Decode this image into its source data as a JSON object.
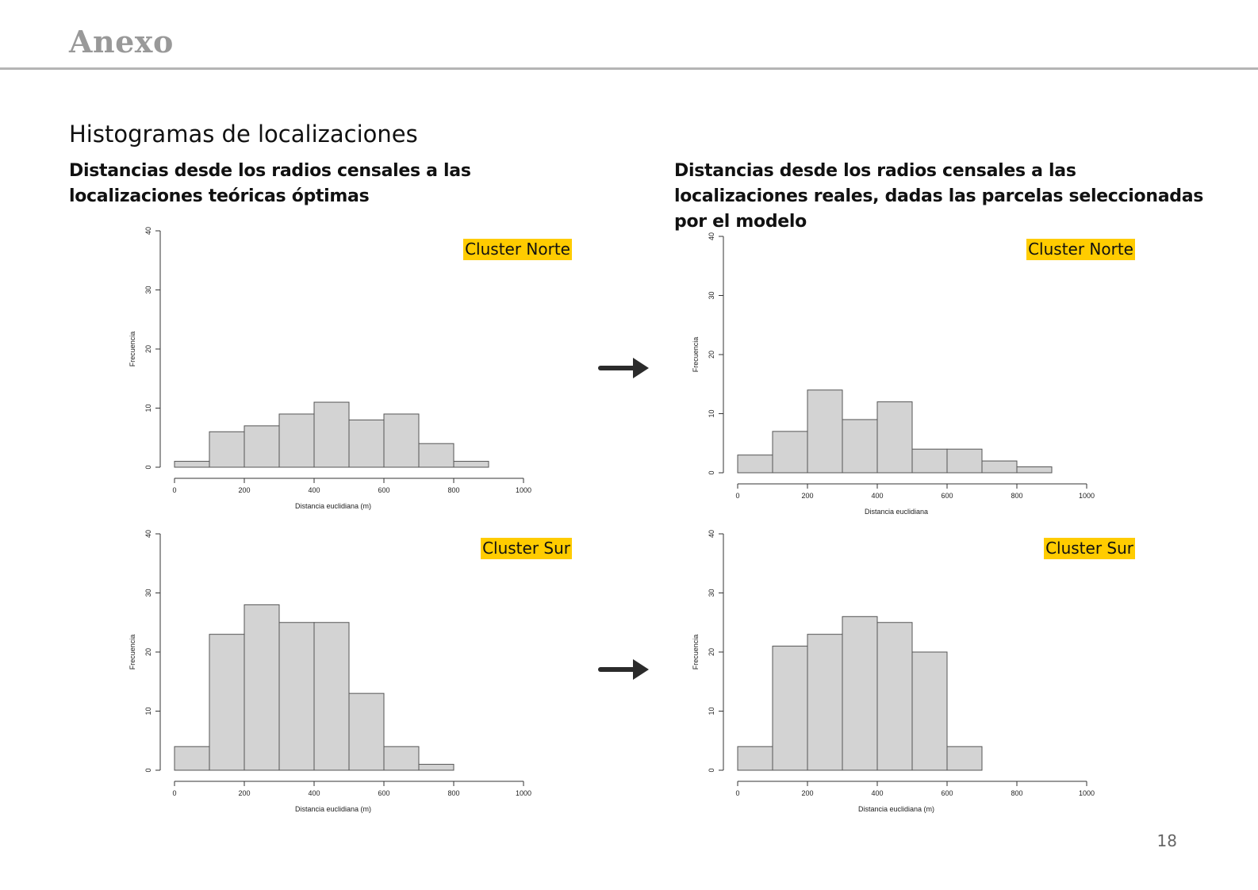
{
  "slide": {
    "title": "Anexo",
    "section_heading": "Histogramas de localizaciones",
    "left_heading": "Distancias desde los radios censales a las localizaciones teóricas óptimas",
    "right_heading": "Distancias desde los radios censales a las localizaciones reales, dadas las parcelas seleccionadas por el modelo",
    "page_number": "18",
    "highlight_color": "#ffcc00",
    "arrow_icon": "right-arrow-icon"
  },
  "chart_data": [
    {
      "id": "norte-teorico",
      "type": "bar",
      "tag": "Cluster Norte",
      "bin_edges": [
        0,
        100,
        200,
        300,
        400,
        500,
        600,
        700,
        800,
        900
      ],
      "values": [
        1,
        6,
        7,
        9,
        11,
        8,
        9,
        4,
        1
      ],
      "xlim": [
        0,
        1000
      ],
      "ylim": [
        0,
        40
      ],
      "xticks": [
        0,
        200,
        400,
        600,
        800,
        1000
      ],
      "yticks": [
        0,
        10,
        20,
        30,
        40
      ],
      "xlabel": "Distancia euclidiana (m)",
      "ylabel": "Frecuencia",
      "bar_color": "#d3d3d3",
      "grid": false
    },
    {
      "id": "norte-real",
      "type": "bar",
      "tag": "Cluster Norte",
      "bin_edges": [
        0,
        100,
        200,
        300,
        400,
        500,
        600,
        700,
        800,
        900
      ],
      "values": [
        3,
        7,
        14,
        9,
        12,
        4,
        4,
        2,
        1
      ],
      "xlim": [
        0,
        1000
      ],
      "ylim": [
        0,
        40
      ],
      "xticks": [
        0,
        200,
        400,
        600,
        800,
        1000
      ],
      "yticks": [
        0,
        10,
        20,
        30,
        40
      ],
      "xlabel": "Distancia euclidiana",
      "ylabel": "Frecuencia",
      "bar_color": "#d3d3d3",
      "grid": false
    },
    {
      "id": "sur-teorico",
      "type": "bar",
      "tag": "Cluster Sur",
      "bin_edges": [
        0,
        100,
        200,
        300,
        400,
        500,
        600,
        700,
        800
      ],
      "values": [
        4,
        23,
        28,
        25,
        25,
        13,
        4,
        1
      ],
      "xlim": [
        0,
        1000
      ],
      "ylim": [
        0,
        40
      ],
      "xticks": [
        0,
        200,
        400,
        600,
        800,
        1000
      ],
      "yticks": [
        0,
        10,
        20,
        30,
        40
      ],
      "xlabel": "Distancia euclidiana (m)",
      "ylabel": "Frecuencia",
      "bar_color": "#d3d3d3",
      "grid": false
    },
    {
      "id": "sur-real",
      "type": "bar",
      "tag": "Cluster Sur",
      "bin_edges": [
        0,
        100,
        200,
        300,
        400,
        500,
        600,
        700
      ],
      "values": [
        4,
        21,
        23,
        26,
        25,
        20,
        4
      ],
      "xlim": [
        0,
        1000
      ],
      "ylim": [
        0,
        40
      ],
      "xticks": [
        0,
        200,
        400,
        600,
        800,
        1000
      ],
      "yticks": [
        0,
        10,
        20,
        30,
        40
      ],
      "xlabel": "Distancia euclidiana (m)",
      "ylabel": "Frecuencia",
      "bar_color": "#d3d3d3",
      "grid": false
    }
  ]
}
